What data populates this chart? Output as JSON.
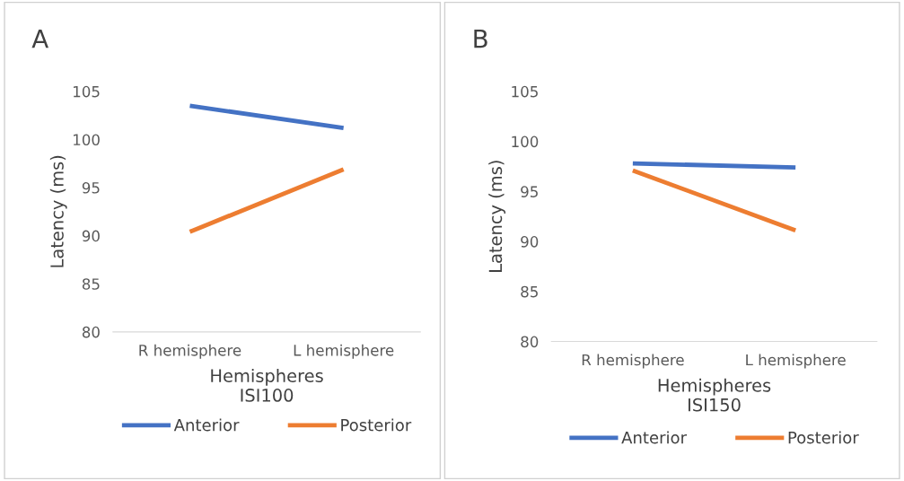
{
  "chart_data": [
    {
      "type": "line",
      "title": "A",
      "xlabel": "Hemispheres\nISI100",
      "ylabel": "Latency (ms)",
      "categories": [
        "R hemisphere",
        "L hemisphere"
      ],
      "series": [
        {
          "name": "Anterior",
          "color": "#4472c4",
          "values": [
            103.5,
            101.2
          ]
        },
        {
          "name": "Posterior",
          "color": "#ed7d31",
          "values": [
            90.4,
            96.9
          ]
        }
      ],
      "ylim": [
        80,
        105
      ],
      "yticks": [
        80,
        85,
        90,
        95,
        100,
        105
      ],
      "grid": false,
      "legend": "bottom",
      "marker": "none",
      "line_style": "solid"
    },
    {
      "type": "line",
      "title": "B",
      "xlabel": "Hemispheres\nISI150",
      "ylabel": "Latency (ms)",
      "categories": [
        "R hemisphere",
        "L hemisphere"
      ],
      "series": [
        {
          "name": "Anterior",
          "color": "#4472c4",
          "values": [
            97.8,
            97.4
          ]
        },
        {
          "name": "Posterior",
          "color": "#ed7d31",
          "values": [
            97.1,
            91.1
          ]
        }
      ],
      "ylim": [
        80,
        105
      ],
      "yticks": [
        80,
        85,
        90,
        95,
        100,
        105
      ],
      "grid": false,
      "legend": "bottom",
      "marker": "none",
      "line_style": "solid"
    }
  ]
}
